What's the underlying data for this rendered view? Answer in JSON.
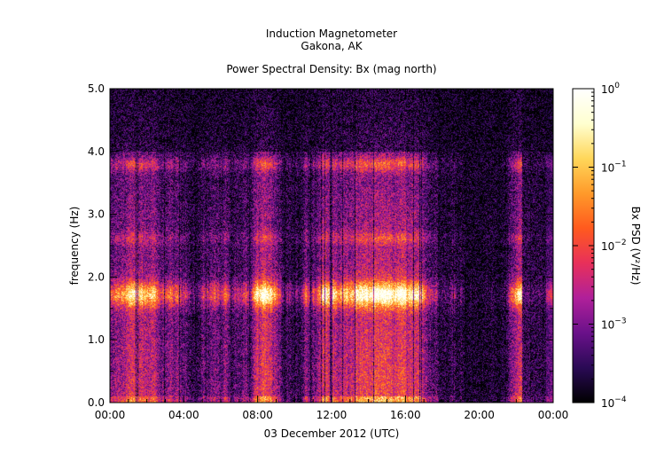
{
  "chart_data": {
    "type": "heatmap",
    "title": "Induction Magnetometer",
    "subtitle": "Gakona, AK",
    "plot_title": "Power Spectral Density: Bx (mag north)",
    "xlabel": "03 December 2012 (UTC)",
    "ylabel": "frequency (Hz)",
    "x_range_hours": [
      0,
      24
    ],
    "ylim": [
      0.0,
      5.0
    ],
    "x_ticks": [
      {
        "hour": 0,
        "label": "00:00"
      },
      {
        "hour": 4,
        "label": "04:00"
      },
      {
        "hour": 8,
        "label": "08:00"
      },
      {
        "hour": 12,
        "label": "12:00"
      },
      {
        "hour": 16,
        "label": "16:00"
      },
      {
        "hour": 20,
        "label": "20:00"
      },
      {
        "hour": 24,
        "label": "00:00"
      }
    ],
    "y_ticks": [
      {
        "value": 0.0,
        "label": "0.0"
      },
      {
        "value": 1.0,
        "label": "1.0"
      },
      {
        "value": 2.0,
        "label": "2.0"
      },
      {
        "value": 3.0,
        "label": "3.0"
      },
      {
        "value": 4.0,
        "label": "4.0"
      },
      {
        "value": 5.0,
        "label": "5.0"
      }
    ],
    "colorbar": {
      "label": "Bx PSD (V²/Hz)",
      "scale": "log",
      "range": [
        0.0001,
        1
      ],
      "ticks": [
        {
          "exp": 0,
          "label_base": "10",
          "label_exp": "0"
        },
        {
          "exp": -1,
          "label_base": "10",
          "label_exp": "−1"
        },
        {
          "exp": -2,
          "label_base": "10",
          "label_exp": "−2"
        },
        {
          "exp": -3,
          "label_base": "10",
          "label_exp": "−3"
        },
        {
          "exp": -4,
          "label_base": "10",
          "label_exp": "−4"
        }
      ],
      "colors": [
        "#000000",
        "#2a0a55",
        "#6a118a",
        "#b0209a",
        "#e8305a",
        "#ff5a1e",
        "#ff9a2a",
        "#ffd75a",
        "#ffffd0",
        "#ffffff"
      ]
    },
    "features": {
      "main_band_hz": [
        1.55,
        1.9
      ],
      "band_peak_hz": 1.72,
      "upper_band_hz": [
        3.7,
        3.9
      ],
      "mid_band_hz": [
        2.55,
        2.7
      ],
      "quiet_intervals_hours": [
        [
          19.2,
          21.2
        ],
        [
          22.3,
          23.6
        ]
      ]
    }
  }
}
